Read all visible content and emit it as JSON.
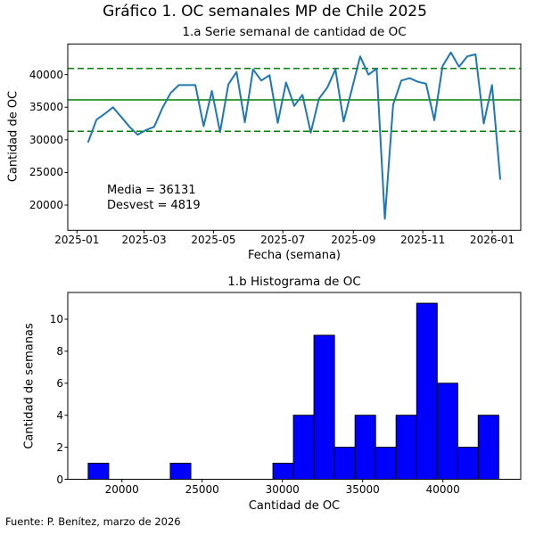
{
  "figure": {
    "title": "Gráfico 1. OC semanales MP de Chile 2025",
    "source_note": "Fuente: P. Benítez, marzo de 2026"
  },
  "chart_data": [
    {
      "type": "line",
      "title": "1.a Serie semanal de cantidad de OC",
      "xlabel": "Fecha (semana)",
      "ylabel": "Cantidad de OC",
      "x_tick_labels": [
        "2025-01",
        "2025-03",
        "2025-05",
        "2025-07",
        "2025-09",
        "2025-11",
        "2026-01"
      ],
      "y_ticks": [
        20000,
        25000,
        30000,
        35000,
        40000
      ],
      "y_tick_labels": [
        "20000",
        "25000",
        "30000",
        "35000",
        "40000"
      ],
      "weeks": [
        "2025-01-12",
        "2025-01-19",
        "2025-01-26",
        "2025-02-02",
        "2025-02-09",
        "2025-02-16",
        "2025-02-23",
        "2025-03-02",
        "2025-03-09",
        "2025-03-16",
        "2025-03-23",
        "2025-03-30",
        "2025-04-06",
        "2025-04-13",
        "2025-04-20",
        "2025-04-27",
        "2025-05-04",
        "2025-05-11",
        "2025-05-18",
        "2025-05-25",
        "2025-06-01",
        "2025-06-08",
        "2025-06-15",
        "2025-06-22",
        "2025-06-29",
        "2025-07-06",
        "2025-07-13",
        "2025-07-20",
        "2025-07-27",
        "2025-08-03",
        "2025-08-10",
        "2025-08-17",
        "2025-08-24",
        "2025-08-31",
        "2025-09-07",
        "2025-09-14",
        "2025-09-21",
        "2025-09-28",
        "2025-10-05",
        "2025-10-12",
        "2025-10-19",
        "2025-10-26",
        "2025-11-02",
        "2025-11-09",
        "2025-11-16",
        "2025-11-23",
        "2025-11-30",
        "2025-12-07",
        "2025-12-14",
        "2025-12-21",
        "2025-12-28"
      ],
      "values": [
        29700,
        33100,
        34000,
        35000,
        33500,
        32000,
        30800,
        31500,
        32000,
        34900,
        37200,
        38400,
        38400,
        38400,
        32100,
        37500,
        31200,
        38500,
        40400,
        32700,
        40800,
        39100,
        39900,
        32600,
        38800,
        35200,
        36900,
        31100,
        36300,
        38000,
        40800,
        32800,
        37800,
        42800,
        40000,
        40900,
        17900,
        35400,
        39100,
        39450,
        38900,
        38600,
        33000,
        41300,
        43400,
        41200,
        42800,
        43100,
        32500,
        38400,
        24000
      ],
      "mean": 36131,
      "std": 4819,
      "mean_line_value": 36131,
      "upper_dashed_value": 40950,
      "lower_dashed_value": 31312,
      "annotation_lines": [
        "Media = 36131",
        "Desvest = 4819"
      ],
      "ylim": [
        16100,
        44700
      ],
      "line_color": "#1f77b4",
      "ref_line_color": "#008000"
    },
    {
      "type": "histogram",
      "title": "1.b Histograma de OC",
      "xlabel": "Cantidad de OC",
      "ylabel": "Cantidad de semanas",
      "x_ticks": [
        20000,
        25000,
        30000,
        35000,
        40000
      ],
      "x_tick_labels": [
        "20000",
        "25000",
        "30000",
        "35000",
        "40000"
      ],
      "y_ticks": [
        0,
        2,
        4,
        6,
        8,
        10
      ],
      "y_tick_labels": [
        "0",
        "2",
        "4",
        "6",
        "8",
        "10"
      ],
      "bin_start": 17900,
      "bin_width": 1279,
      "counts": [
        1,
        0,
        0,
        0,
        1,
        0,
        0,
        0,
        0,
        1,
        4,
        9,
        2,
        4,
        2,
        4,
        11,
        6,
        2,
        4
      ],
      "ylim": [
        0,
        11.55
      ],
      "bar_color": "#0000ff",
      "bar_edge_color": "#000000"
    }
  ]
}
